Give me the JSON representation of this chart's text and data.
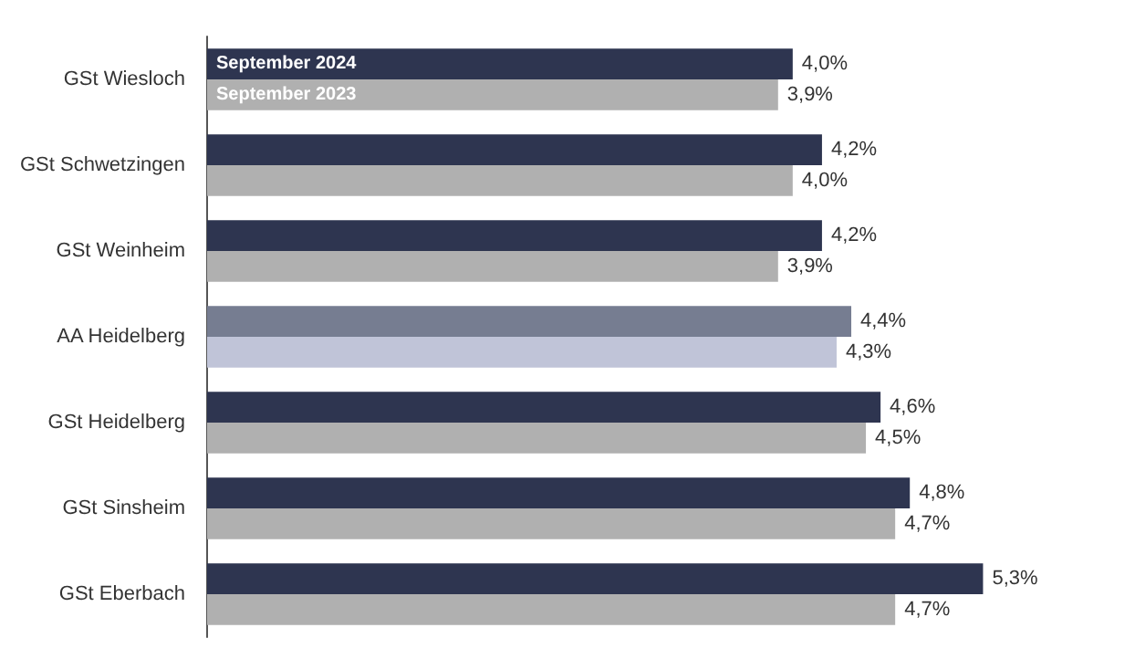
{
  "chart_data": {
    "type": "bar",
    "orientation": "horizontal",
    "categories": [
      "GSt Wiesloch",
      "GSt Schwetzingen",
      "GSt Weinheim",
      "AA Heidelberg",
      "GSt Heidelberg",
      "GSt Sinsheim",
      "GSt Eberbach"
    ],
    "series": [
      {
        "name": "September 2024",
        "colors": [
          "#2e3550",
          "#2e3550",
          "#2e3550",
          "#767d91",
          "#2e3550",
          "#2e3550",
          "#2e3550"
        ],
        "values": [
          4.0,
          4.2,
          4.2,
          4.4,
          4.6,
          4.8,
          5.3
        ],
        "value_labels": [
          "4,0%",
          "4,2%",
          "4,2%",
          "4,4%",
          "4,6%",
          "4,8%",
          "5,3%"
        ]
      },
      {
        "name": "September 2023",
        "colors": [
          "#b0b0b0",
          "#b0b0b0",
          "#b0b0b0",
          "#c0c4d8",
          "#b0b0b0",
          "#b0b0b0",
          "#b0b0b0"
        ],
        "values": [
          3.9,
          4.0,
          3.9,
          4.3,
          4.5,
          4.7,
          4.7
        ],
        "value_labels": [
          "3,9%",
          "4,0%",
          "3,9%",
          "4,3%",
          "4,5%",
          "4,7%",
          "4,7%"
        ]
      }
    ],
    "legend": false
  }
}
